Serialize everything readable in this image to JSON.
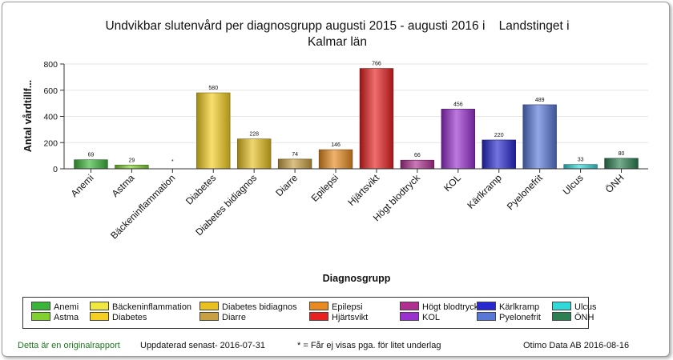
{
  "chart_data": {
    "type": "bar",
    "title": "Undvikbar slutenvård per diagnosgrupp augusti 2015 - augusti 2016 i    Landstinget i Kalmar län",
    "title_lines": [
      "Undvikbar slutenvård per diagnosgrupp augusti 2015 - augusti 2016 i    Landstinget i",
      "Kalmar län"
    ],
    "xlabel": "Diagnosgrupp",
    "ylabel": "Antal vårdtillf...",
    "ylim": [
      0,
      800
    ],
    "yticks": [
      "0",
      "200",
      "400",
      "600",
      "800"
    ],
    "grid": true,
    "legend_position": "bottom",
    "categories": [
      "Anemi",
      "Astma",
      "Bäckeninflammation",
      "Diabetes",
      "Diabetes bidiagnos",
      "Diarre",
      "Epilepsi",
      "Hjärtsvikt",
      "Högt blodtryck",
      "KOL",
      "Kärlkramp",
      "Pyelonefrit",
      "Ulcus",
      "ÖNH"
    ],
    "bars": [
      {
        "x": "Anemi",
        "value": 69,
        "label": "69",
        "color": "#3ab53a"
      },
      {
        "x": "Astma",
        "value": 29,
        "label": "29",
        "color": "#80d030"
      },
      {
        "x": "Bäckeninflammation",
        "value": null,
        "label": "*",
        "color": "#f0e840"
      },
      {
        "x": "Diabetes",
        "value": 580,
        "label": "580",
        "color": "#f5d020"
      },
      {
        "x": "Diabetes bidiagnos",
        "value": 228,
        "label": "228",
        "color": "#e8c020"
      },
      {
        "x": "Diarre",
        "value": 74,
        "label": "74",
        "color": "#c8a040"
      },
      {
        "x": "Epilepsi",
        "value": 146,
        "label": "146",
        "color": "#e88a20"
      },
      {
        "x": "Hjärtsvikt",
        "value": 766,
        "label": "766",
        "color": "#e82020"
      },
      {
        "x": "Högt blodtryck",
        "value": 66,
        "label": "66",
        "color": "#b03090"
      },
      {
        "x": "KOL",
        "value": 456,
        "label": "456",
        "color": "#9a30d0"
      },
      {
        "x": "Kärlkramp",
        "value": 220,
        "label": "220",
        "color": "#2828d0"
      },
      {
        "x": "Pyelonefrit",
        "value": 489,
        "label": "489",
        "color": "#5878d8"
      },
      {
        "x": "Ulcus",
        "value": 33,
        "label": "33",
        "color": "#30d8d8"
      },
      {
        "x": "ÖNH",
        "value": 80,
        "label": "80",
        "color": "#2a8050"
      }
    ],
    "legend": [
      {
        "name": "Anemi",
        "color": "#3ab53a"
      },
      {
        "name": "Astma",
        "color": "#80d030"
      },
      {
        "name": "Bäckeninflammation",
        "color": "#f0e840"
      },
      {
        "name": "Diabetes",
        "color": "#f5d020"
      },
      {
        "name": "Diabetes bidiagnos",
        "color": "#e8c020"
      },
      {
        "name": "Diarre",
        "color": "#c8a040"
      },
      {
        "name": "Epilepsi",
        "color": "#e88a20"
      },
      {
        "name": "Hjärtsvikt",
        "color": "#e82020"
      },
      {
        "name": "Högt blodtryck",
        "color": "#b03090"
      },
      {
        "name": "KOL",
        "color": "#9a30d0"
      },
      {
        "name": "Kärlkramp",
        "color": "#2828d0"
      },
      {
        "name": "Pyelonefrit",
        "color": "#5878d8"
      },
      {
        "name": "Ulcus",
        "color": "#30d8d8"
      },
      {
        "name": "ÖNH",
        "color": "#2a8050"
      }
    ]
  },
  "footer": {
    "original_link": "Detta är en originalrapport",
    "updated": "Uppdaterad senast- 2016-07-31",
    "note": "* = Får ej visas pga. för litet underlag",
    "vendor": "Otimo Data AB 2016-08-16"
  }
}
